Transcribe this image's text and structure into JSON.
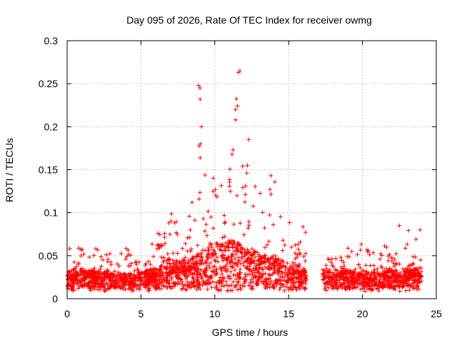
{
  "chart_data": {
    "type": "scatter",
    "title": "Day 095 of 2026, Rate Of TEC Index for receiver owmg",
    "xlabel": "GPS time / hours",
    "ylabel": "ROTI / TECUs",
    "xlim": [
      0,
      25
    ],
    "ylim": [
      0,
      0.3
    ],
    "x_ticks": [
      0,
      5,
      10,
      15,
      20,
      25
    ],
    "x_tick_labels": [
      "0",
      "5",
      "10",
      "15",
      "20",
      "25"
    ],
    "y_ticks": [
      0,
      0.05,
      0.1,
      0.15,
      0.2,
      0.25,
      0.3
    ],
    "y_tick_labels": [
      "0",
      "0.05",
      "0.1",
      "0.15",
      "0.2",
      "0.25",
      "0.3"
    ],
    "grid": true,
    "marker": "+",
    "marker_color": "#ff0000",
    "data_gap_hours": [
      16.2,
      17.3
    ],
    "series": [
      {
        "name": "ROTI",
        "envelope": {
          "x": [
            0,
            0.5,
            1,
            1.5,
            2,
            2.5,
            3,
            3.5,
            4,
            4.5,
            5,
            5.5,
            6,
            6.5,
            7,
            7.5,
            8,
            8.5,
            9,
            9.5,
            10,
            10.5,
            11,
            11.5,
            12,
            12.5,
            13,
            13.5,
            14,
            14.5,
            15,
            15.5,
            16,
            17.3,
            17.5,
            18,
            18.5,
            19,
            19.5,
            20,
            20.5,
            21,
            21.5,
            22,
            22.5,
            23,
            23.5,
            24
          ],
          "base": [
            0.025,
            0.025,
            0.025,
            0.025,
            0.024,
            0.024,
            0.023,
            0.023,
            0.023,
            0.023,
            0.024,
            0.025,
            0.026,
            0.028,
            0.03,
            0.03,
            0.032,
            0.035,
            0.038,
            0.042,
            0.045,
            0.045,
            0.048,
            0.045,
            0.042,
            0.04,
            0.038,
            0.035,
            0.035,
            0.033,
            0.03,
            0.028,
            0.025,
            0.025,
            0.024,
            0.024,
            0.025,
            0.025,
            0.024,
            0.024,
            0.023,
            0.024,
            0.024,
            0.025,
            0.025,
            0.026,
            0.026,
            0.027
          ],
          "peak": [
            0.06,
            0.055,
            0.072,
            0.065,
            0.06,
            0.055,
            0.055,
            0.058,
            0.062,
            0.045,
            0.042,
            0.055,
            0.08,
            0.088,
            0.108,
            0.085,
            0.09,
            0.12,
            0.248,
            0.14,
            0.16,
            0.18,
            0.2,
            0.265,
            0.185,
            0.15,
            0.13,
            0.12,
            0.145,
            0.115,
            0.1,
            0.07,
            0.09,
            0.04,
            0.045,
            0.05,
            0.055,
            0.06,
            0.06,
            0.065,
            0.06,
            0.05,
            0.075,
            0.06,
            0.07,
            0.085,
            0.07,
            0.08
          ]
        },
        "notable_points": [
          {
            "x": 8.9,
            "y": 0.248
          },
          {
            "x": 9.0,
            "y": 0.245
          },
          {
            "x": 11.7,
            "y": 0.265
          },
          {
            "x": 11.6,
            "y": 0.263
          },
          {
            "x": 11.4,
            "y": 0.22
          },
          {
            "x": 9.1,
            "y": 0.2
          },
          {
            "x": 13.8,
            "y": 0.143
          },
          {
            "x": 12.3,
            "y": 0.185
          },
          {
            "x": 22.5,
            "y": 0.085
          },
          {
            "x": 23.9,
            "y": 0.08
          }
        ]
      }
    ]
  }
}
